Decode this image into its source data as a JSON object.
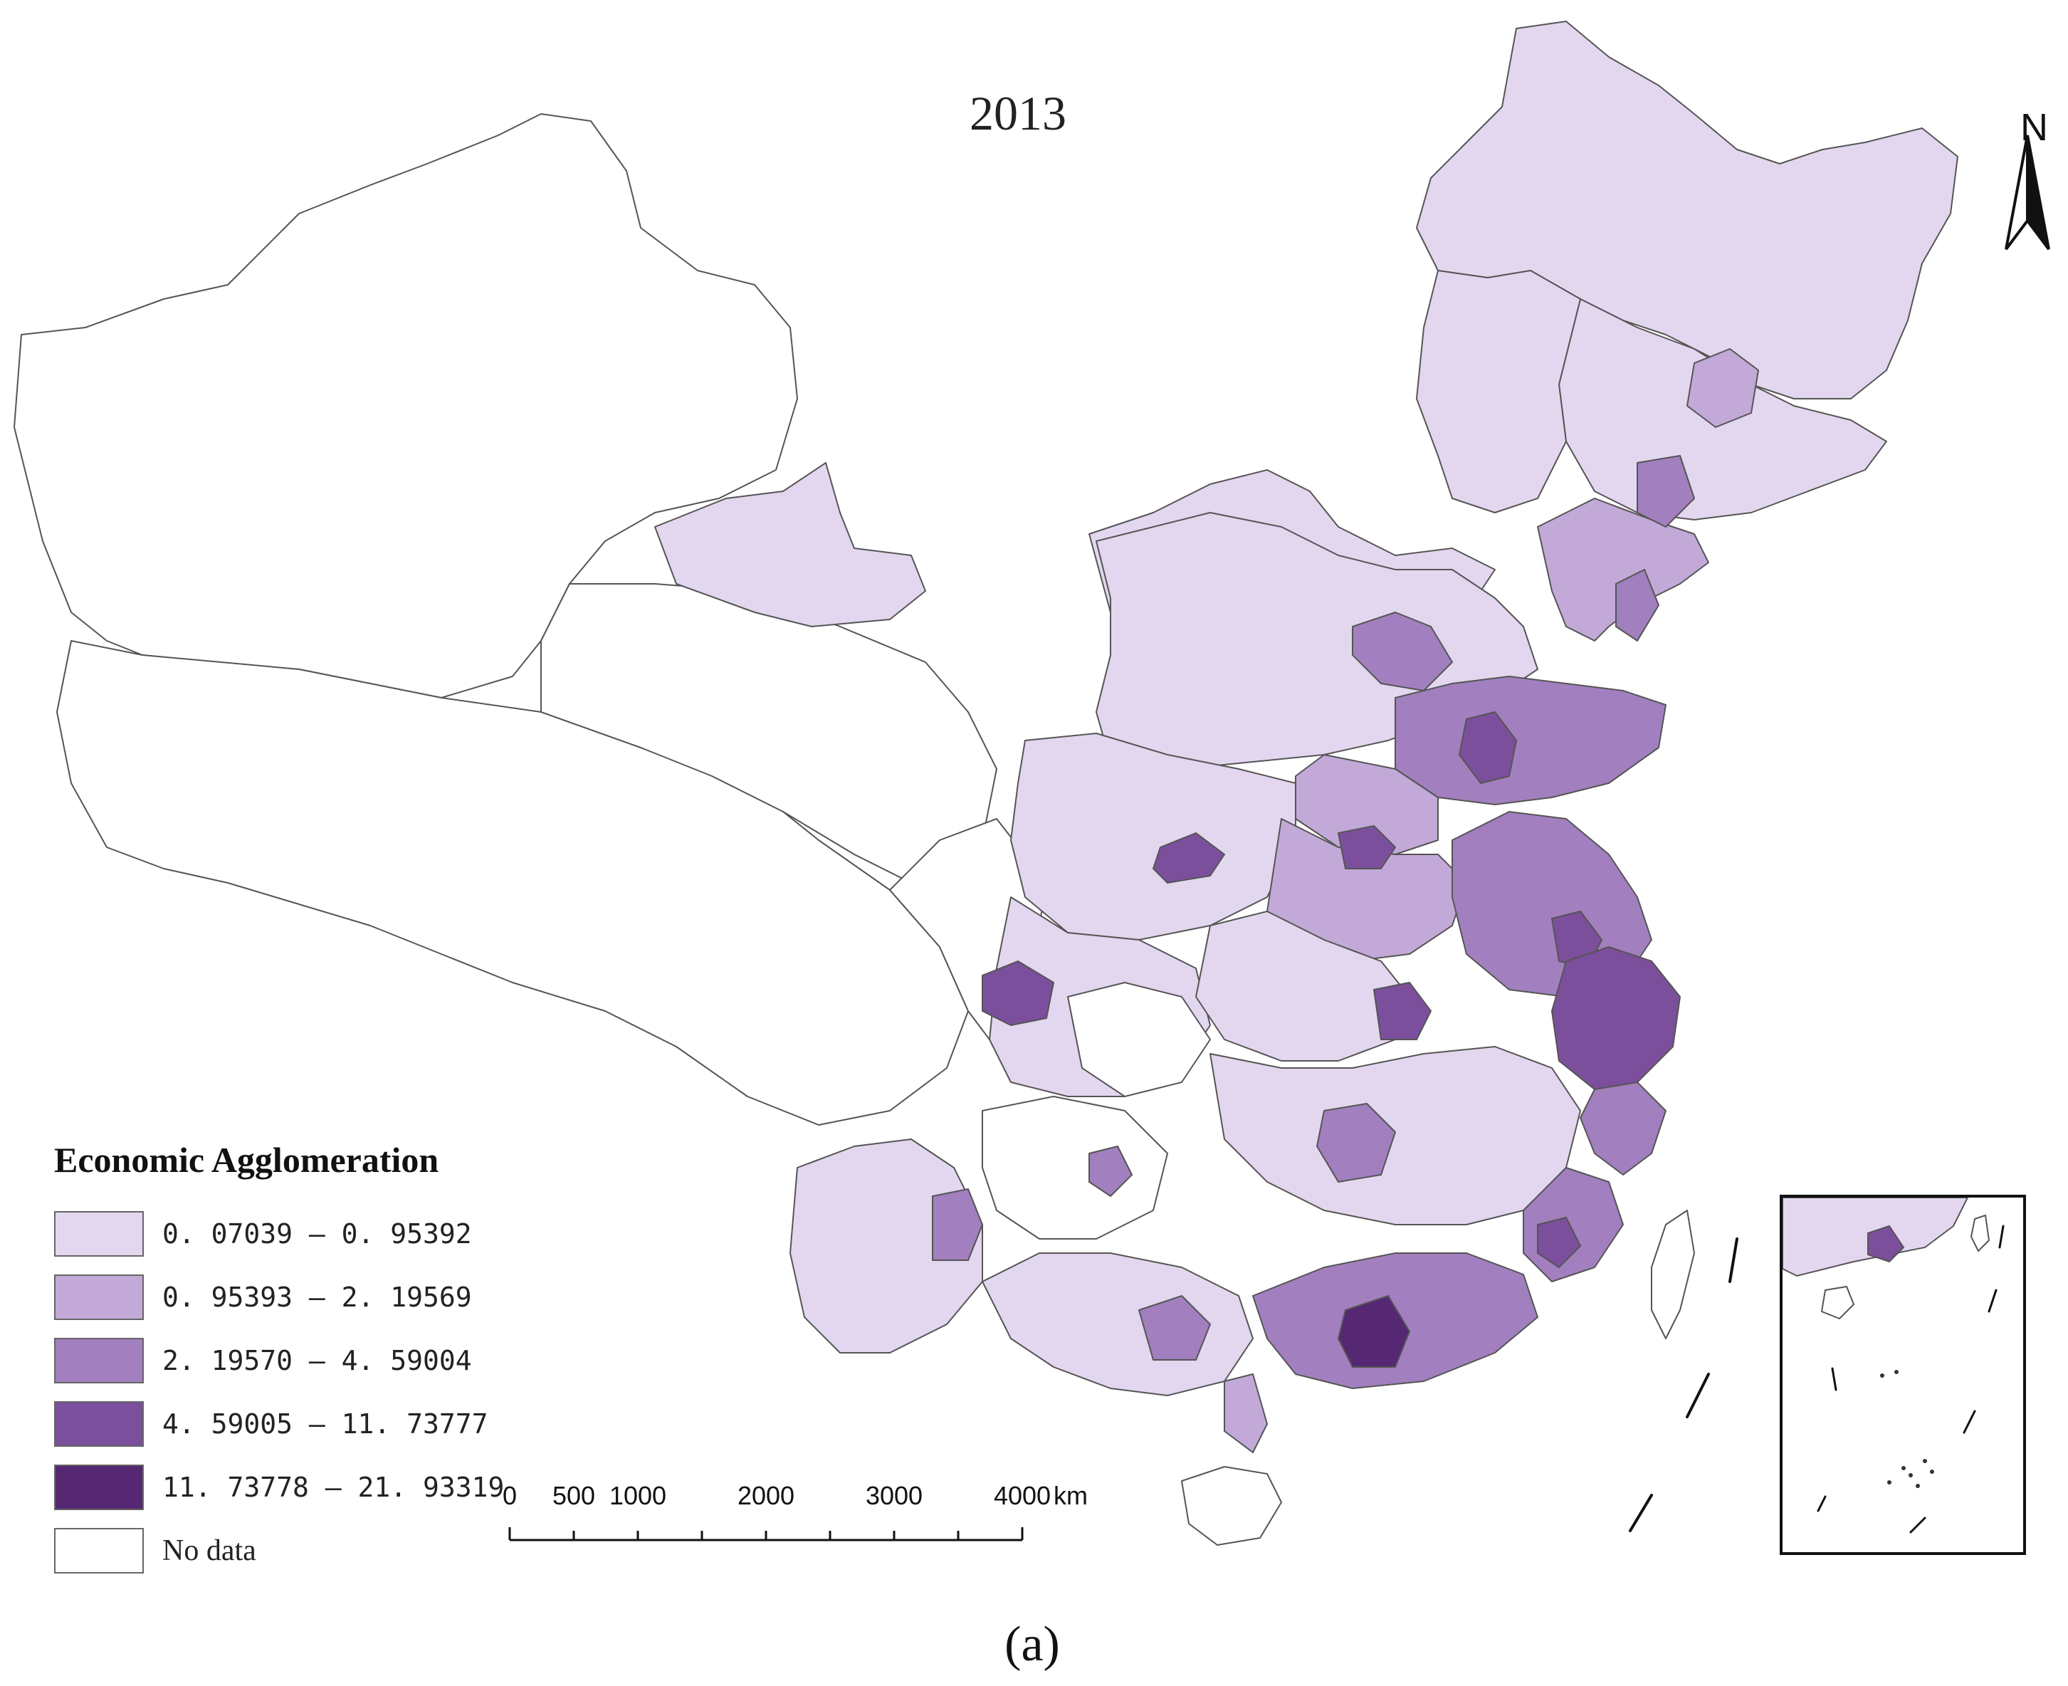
{
  "title": "2013",
  "north_label": "N",
  "legend": {
    "title": "Economic Agglomeration",
    "classes": [
      {
        "label": "0. 07039 — 0. 95392",
        "color": "#e3d7ef"
      },
      {
        "label": "0. 95393 — 2. 19569",
        "color": "#c2a9d8"
      },
      {
        "label": "2. 19570 — 4. 59004",
        "color": "#a27fbe"
      },
      {
        "label": "4. 59005 — 11. 73777",
        "color": "#7c4f9d"
      },
      {
        "label": "11. 73778 — 21. 93319",
        "color": "#562873"
      },
      {
        "label": "No data",
        "color": "#ffffff"
      }
    ]
  },
  "scale_bar": {
    "ticks": [
      "0",
      "500",
      "1000",
      "2000",
      "3000",
      "4000"
    ],
    "unit": "km"
  },
  "caption": "(a)"
}
